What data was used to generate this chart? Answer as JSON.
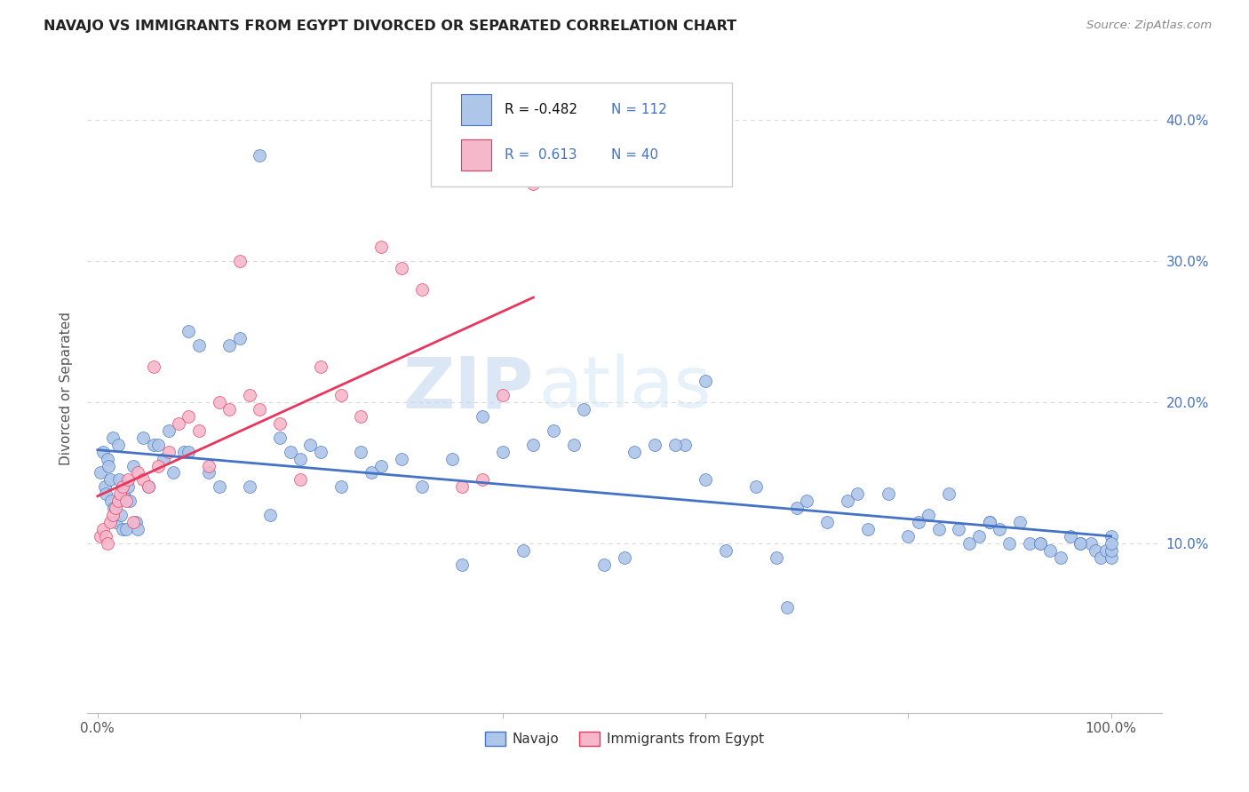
{
  "title": "NAVAJO VS IMMIGRANTS FROM EGYPT DIVORCED OR SEPARATED CORRELATION CHART",
  "source": "Source: ZipAtlas.com",
  "ylabel": "Divorced or Separated",
  "x_tick_labels": [
    "0.0%",
    "",
    "",
    "",
    "",
    "100.0%"
  ],
  "x_tick_values": [
    0,
    20,
    40,
    60,
    80,
    100
  ],
  "y_tick_labels": [
    "10.0%",
    "20.0%",
    "30.0%",
    "40.0%"
  ],
  "y_tick_values": [
    10,
    20,
    30,
    40
  ],
  "xlim": [
    -1,
    105
  ],
  "ylim": [
    -2,
    44
  ],
  "navajo_R": -0.482,
  "navajo_N": 112,
  "egypt_R": 0.613,
  "egypt_N": 40,
  "navajo_color": "#aec6e8",
  "egypt_color": "#f5b8cb",
  "navajo_line_color": "#4472c4",
  "egypt_line_color": "#e8365d",
  "watermark_zip": "ZIP",
  "watermark_atlas": "atlas",
  "background_color": "#ffffff",
  "grid_color": "#d8d8d8",
  "navajo_x": [
    0.3,
    0.5,
    0.7,
    0.8,
    1.0,
    1.1,
    1.2,
    1.3,
    1.5,
    1.6,
    1.8,
    2.0,
    2.1,
    2.3,
    2.5,
    2.6,
    2.8,
    3.0,
    3.2,
    3.5,
    3.8,
    4.0,
    4.5,
    5.0,
    5.5,
    6.0,
    6.5,
    7.0,
    7.5,
    8.5,
    9.0,
    10.0,
    11.0,
    12.0,
    13.0,
    14.0,
    15.0,
    17.0,
    18.0,
    20.0,
    22.0,
    24.0,
    26.0,
    28.0,
    30.0,
    32.0,
    35.0,
    38.0,
    40.0,
    43.0,
    45.0,
    47.0,
    50.0,
    53.0,
    55.0,
    58.0,
    60.0,
    62.0,
    65.0,
    67.0,
    69.0,
    70.0,
    72.0,
    74.0,
    76.0,
    78.0,
    80.0,
    81.0,
    82.0,
    83.0,
    84.0,
    85.0,
    86.0,
    87.0,
    88.0,
    89.0,
    90.0,
    91.0,
    92.0,
    93.0,
    94.0,
    95.0,
    96.0,
    97.0,
    98.0,
    98.5,
    99.0,
    99.5,
    100.0,
    100.0,
    100.0,
    100.0,
    9.0,
    16.0,
    19.0,
    21.0,
    27.0,
    36.0,
    42.0,
    48.0,
    52.0,
    57.0,
    60.0,
    68.0,
    75.0,
    88.0,
    93.0,
    97.0
  ],
  "navajo_y": [
    15.0,
    16.5,
    14.0,
    13.5,
    16.0,
    15.5,
    14.5,
    13.0,
    17.5,
    12.5,
    11.5,
    17.0,
    14.5,
    12.0,
    11.0,
    13.5,
    11.0,
    14.0,
    13.0,
    15.5,
    11.5,
    11.0,
    17.5,
    14.0,
    17.0,
    17.0,
    16.0,
    18.0,
    15.0,
    16.5,
    16.5,
    24.0,
    15.0,
    14.0,
    24.0,
    24.5,
    14.0,
    12.0,
    17.5,
    16.0,
    16.5,
    14.0,
    16.5,
    15.5,
    16.0,
    14.0,
    16.0,
    19.0,
    16.5,
    17.0,
    18.0,
    17.0,
    8.5,
    16.5,
    17.0,
    17.0,
    14.5,
    9.5,
    14.0,
    9.0,
    12.5,
    13.0,
    11.5,
    13.0,
    11.0,
    13.5,
    10.5,
    11.5,
    12.0,
    11.0,
    13.5,
    11.0,
    10.0,
    10.5,
    11.5,
    11.0,
    10.0,
    11.5,
    10.0,
    10.0,
    9.5,
    9.0,
    10.5,
    10.0,
    10.0,
    9.5,
    9.0,
    9.5,
    9.0,
    10.5,
    9.5,
    10.0,
    25.0,
    37.5,
    16.5,
    17.0,
    15.0,
    8.5,
    9.5,
    19.5,
    9.0,
    17.0,
    21.5,
    5.5,
    13.5,
    11.5,
    10.0,
    10.0
  ],
  "egypt_x": [
    0.3,
    0.5,
    0.8,
    1.0,
    1.2,
    1.5,
    1.8,
    2.0,
    2.2,
    2.5,
    2.8,
    3.0,
    3.5,
    4.0,
    4.5,
    5.0,
    5.5,
    6.0,
    7.0,
    8.0,
    9.0,
    10.0,
    11.0,
    12.0,
    13.0,
    14.0,
    15.0,
    16.0,
    18.0,
    20.0,
    22.0,
    24.0,
    26.0,
    28.0,
    30.0,
    32.0,
    36.0,
    38.0,
    40.0,
    43.0
  ],
  "egypt_y": [
    10.5,
    11.0,
    10.5,
    10.0,
    11.5,
    12.0,
    12.5,
    13.0,
    13.5,
    14.0,
    13.0,
    14.5,
    11.5,
    15.0,
    14.5,
    14.0,
    22.5,
    15.5,
    16.5,
    18.5,
    19.0,
    18.0,
    15.5,
    20.0,
    19.5,
    30.0,
    20.5,
    19.5,
    18.5,
    14.5,
    22.5,
    20.5,
    19.0,
    31.0,
    29.5,
    28.0,
    14.0,
    14.5,
    20.5,
    35.5
  ],
  "navajo_line_x": [
    0,
    100
  ],
  "egypt_line_x": [
    0,
    43
  ]
}
